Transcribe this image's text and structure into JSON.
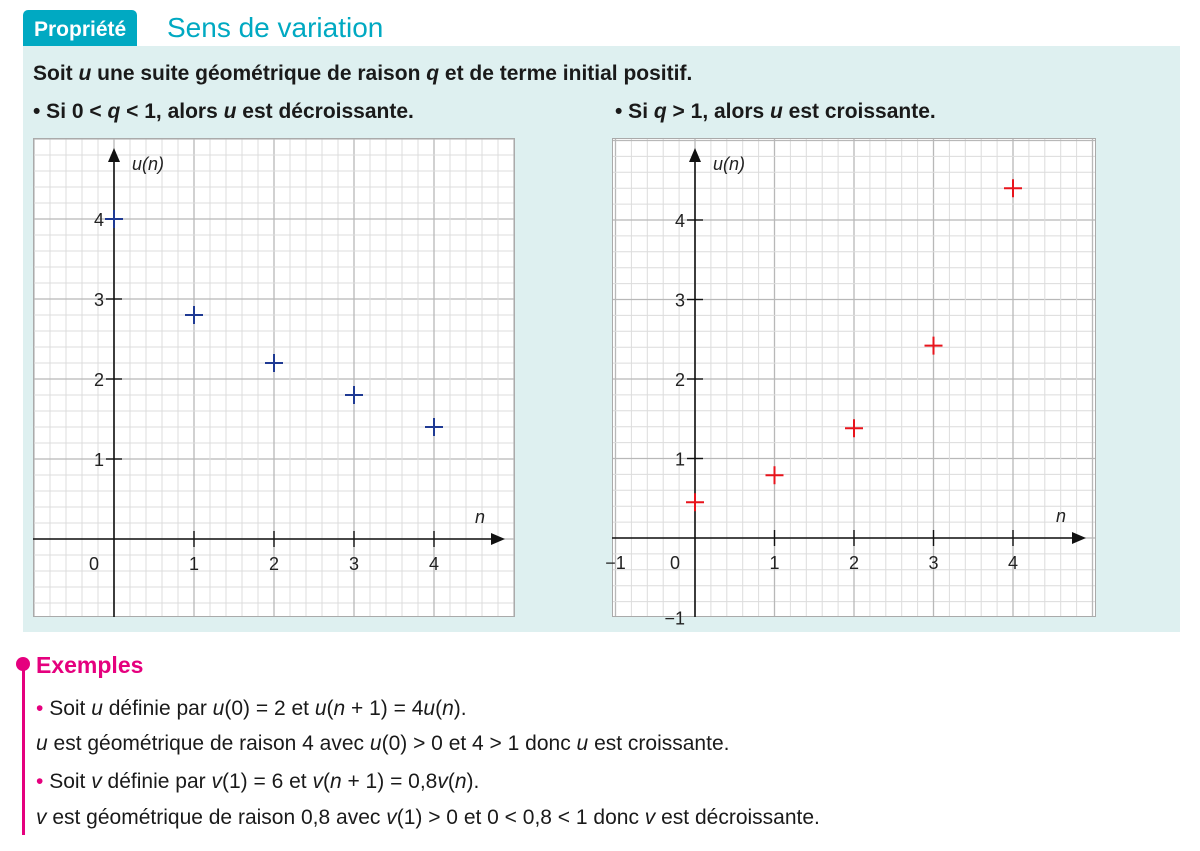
{
  "header": {
    "tag": "Propriété",
    "title": "Sens de variation"
  },
  "property": {
    "intro": [
      "Soit ",
      "u",
      " une suite géométrique de raison ",
      "q",
      " et de terme initial ",
      "positif",
      "."
    ],
    "case1": [
      "• Si 0 < ",
      "q",
      " < 1, alors ",
      "u",
      " est décroissante."
    ],
    "case2": [
      "• Si ",
      "q",
      " > 1, alors ",
      "u",
      " est croissante."
    ]
  },
  "chart_data": [
    {
      "type": "scatter",
      "title": "",
      "xlabel": "n",
      "ylabel": "u(n)",
      "xlim": [
        -1,
        5
      ],
      "ylim": [
        -1,
        5
      ],
      "grid": true,
      "xticks": [
        "0",
        "1",
        "2",
        "3",
        "4"
      ],
      "yticks": [
        "1",
        "2",
        "3",
        "4"
      ],
      "x": [
        0,
        1,
        2,
        3,
        4
      ],
      "y": [
        4,
        2.8,
        2.2,
        1.8,
        1.4
      ],
      "color": "#1f3a93"
    },
    {
      "type": "scatter",
      "title": "",
      "xlabel": "n",
      "ylabel": "u(n)",
      "xlim": [
        -1,
        5
      ],
      "ylim": [
        -1,
        5
      ],
      "grid": true,
      "xticks": [
        "−1",
        "0",
        "1",
        "2",
        "3",
        "4"
      ],
      "yticks": [
        "−1",
        "1",
        "2",
        "3",
        "4"
      ],
      "x": [
        0,
        1,
        2,
        3,
        4
      ],
      "y": [
        0.45,
        0.79,
        1.38,
        2.42,
        4.4
      ],
      "color": "#e8141c"
    }
  ],
  "examples": {
    "title": "Exemples",
    "ex1a": [
      "Soit ",
      "u",
      " définie par ",
      "u",
      "(0) = 2 et ",
      "u",
      "(",
      "n",
      " + 1) = 4",
      "u",
      "(",
      "n",
      "). "
    ],
    "ex1b": [
      "u",
      " est géométrique de raison 4 avec ",
      "u",
      "(0) > 0 et 4 > 1 donc ",
      "u",
      " est croissante."
    ],
    "ex2a": [
      "Soit ",
      "v",
      " définie par ",
      "v",
      "(1) = 6 et ",
      "v",
      "(",
      "n",
      " + 1) = 0,8",
      "v",
      "(",
      "n",
      ")."
    ],
    "ex2b": [
      "v",
      " est géométrique de raison 0,8 avec ",
      "v",
      "(1) > 0 et 0 < 0,8 < 1 donc ",
      "v",
      " est décroissante."
    ]
  }
}
